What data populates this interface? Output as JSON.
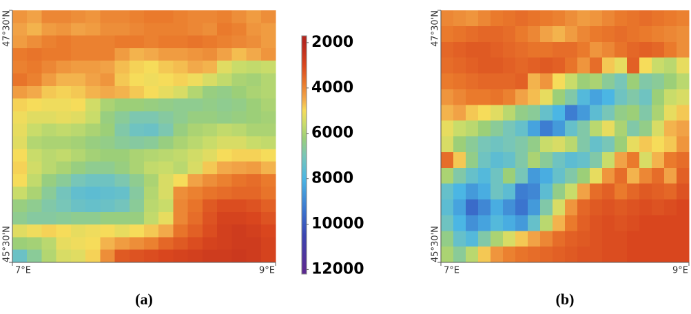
{
  "chart_data": [
    {
      "type": "heatmap",
      "caption": "(a)",
      "xlim": [
        7,
        9
      ],
      "ylim": [
        45.5,
        47.5
      ],
      "xticks": [
        {
          "value": 7,
          "label": "7°E"
        },
        {
          "value": 9,
          "label": "9°E"
        }
      ],
      "yticks": [
        {
          "value": 45.5,
          "label": "45°30'N"
        },
        {
          "value": 47.5,
          "label": "47°30'N"
        }
      ],
      "colorbar": {
        "clim": [
          1700,
          12200
        ],
        "ticks": [
          2000,
          4000,
          6000,
          8000,
          10000,
          12000
        ]
      },
      "colormap": [
        {
          "value": 2000,
          "color": "#b5261e"
        },
        {
          "value": 3000,
          "color": "#d9461e"
        },
        {
          "value": 3800,
          "color": "#ea7a2c"
        },
        {
          "value": 4500,
          "color": "#f2a94a"
        },
        {
          "value": 5000,
          "color": "#f6dc5a"
        },
        {
          "value": 5600,
          "color": "#c9dc6a"
        },
        {
          "value": 6200,
          "color": "#9ccf78"
        },
        {
          "value": 7000,
          "color": "#78c6b8"
        },
        {
          "value": 8000,
          "color": "#4bb6e4"
        },
        {
          "value": 9500,
          "color": "#3a6fcc"
        },
        {
          "value": 10500,
          "color": "#3b44b0"
        },
        {
          "value": 12000,
          "color": "#5b2a91"
        }
      ],
      "z": [
        [
          4200,
          4400,
          4000,
          4000,
          4100,
          4200,
          4000,
          4000,
          3900,
          3800,
          3800,
          3900,
          4000,
          4000,
          3900,
          4100,
          4300,
          4100
        ],
        [
          4400,
          4600,
          4300,
          4200,
          4400,
          4300,
          4100,
          4100,
          4000,
          3900,
          3900,
          3900,
          4000,
          4100,
          3800,
          3900,
          4200,
          4300
        ],
        [
          4300,
          4100,
          3900,
          3800,
          3900,
          3900,
          3900,
          3800,
          3800,
          3900,
          3800,
          3800,
          3700,
          3800,
          3900,
          4000,
          4100,
          4300
        ],
        [
          3800,
          3700,
          3800,
          3800,
          3900,
          3900,
          3900,
          4300,
          4600,
          4500,
          4300,
          4300,
          4200,
          4100,
          4400,
          4700,
          4500,
          4200
        ],
        [
          3900,
          3800,
          4000,
          4200,
          4300,
          4300,
          4400,
          4700,
          4900,
          5000,
          4800,
          4700,
          4500,
          4600,
          5300,
          5600,
          5700,
          5600
        ],
        [
          3700,
          3900,
          4300,
          4600,
          4600,
          4400,
          4200,
          4800,
          5000,
          5100,
          5000,
          4900,
          5100,
          5400,
          5700,
          6000,
          6100,
          5900
        ],
        [
          4300,
          4500,
          4800,
          4900,
          4800,
          4600,
          4500,
          4600,
          4800,
          5000,
          5200,
          5400,
          5900,
          6300,
          6400,
          6200,
          6000,
          5900
        ],
        [
          4900,
          5000,
          5100,
          5100,
          5000,
          5500,
          6000,
          6200,
          6200,
          6300,
          6400,
          6500,
          6500,
          6400,
          6500,
          6400,
          6200,
          6000
        ],
        [
          5100,
          5300,
          5300,
          5200,
          5300,
          5600,
          6300,
          6600,
          6900,
          6900,
          6700,
          6500,
          6300,
          6300,
          6400,
          6300,
          6200,
          6100
        ],
        [
          5200,
          5600,
          5800,
          5700,
          5800,
          6000,
          6200,
          6800,
          7200,
          7300,
          6900,
          6300,
          6000,
          5900,
          5700,
          5800,
          6000,
          6000
        ],
        [
          5300,
          5900,
          6000,
          6000,
          6100,
          6300,
          6400,
          6600,
          6700,
          6600,
          6300,
          6000,
          5800,
          5600,
          5400,
          5400,
          5600,
          5700
        ],
        [
          5000,
          5600,
          5800,
          5700,
          5900,
          6100,
          6200,
          6200,
          6000,
          5900,
          5800,
          5700,
          5500,
          5300,
          5000,
          4900,
          4900,
          5000
        ],
        [
          4900,
          5500,
          5800,
          6000,
          6300,
          6500,
          6500,
          6300,
          6000,
          5700,
          5600,
          5800,
          5400,
          4800,
          4500,
          4400,
          4300,
          4600
        ],
        [
          5000,
          5700,
          6300,
          6600,
          7000,
          7200,
          7200,
          6900,
          6500,
          6000,
          5400,
          5000,
          4400,
          4100,
          3900,
          3700,
          3600,
          3800
        ],
        [
          5600,
          6000,
          6600,
          7100,
          7500,
          7600,
          7500,
          7400,
          6700,
          5900,
          5400,
          4100,
          3900,
          3700,
          3600,
          3500,
          3500,
          3700
        ],
        [
          6300,
          6500,
          6800,
          7000,
          7300,
          7400,
          7300,
          7100,
          6600,
          5800,
          5600,
          4000,
          3700,
          3300,
          3100,
          3100,
          3200,
          3400
        ],
        [
          6500,
          6700,
          6700,
          6600,
          6500,
          6500,
          6300,
          6300,
          6300,
          5700,
          5200,
          4000,
          3600,
          3200,
          2900,
          2900,
          3000,
          3200
        ],
        [
          5300,
          5100,
          4900,
          5000,
          5200,
          5100,
          5000,
          5200,
          5000,
          4800,
          4500,
          3700,
          3400,
          3100,
          2800,
          2700,
          2800,
          3000
        ],
        [
          6200,
          6100,
          5800,
          5200,
          5100,
          5000,
          4600,
          4300,
          4100,
          3900,
          3500,
          3300,
          3100,
          2900,
          2800,
          2700,
          2700,
          2900
        ],
        [
          7300,
          6600,
          5900,
          5400,
          5300,
          4900,
          4100,
          3300,
          3200,
          3100,
          3000,
          2900,
          2800,
          2700,
          2700,
          2600,
          2700,
          2900
        ]
      ]
    },
    {
      "type": "heatmap",
      "caption": "(b)",
      "xlim": [
        7,
        9
      ],
      "ylim": [
        45.5,
        47.5
      ],
      "xticks": [
        {
          "value": 7,
          "label": "7°E"
        },
        {
          "value": 9,
          "label": "9°E"
        }
      ],
      "yticks": [
        {
          "value": 45.5,
          "label": "45°30'N"
        },
        {
          "value": 47.5,
          "label": "47°30'N"
        }
      ],
      "z": [
        [
          4000,
          4100,
          4200,
          4000,
          3800,
          3700,
          3600,
          3700,
          3800,
          3900,
          4100,
          4300,
          4200,
          4000,
          3800,
          3700,
          3600,
          3700,
          3800,
          3900
        ],
        [
          3800,
          3700,
          3600,
          3500,
          3500,
          3600,
          3800,
          4000,
          4400,
          4600,
          4300,
          4000,
          3800,
          3700,
          3600,
          3700,
          3800,
          3900,
          4000,
          4100
        ],
        [
          3500,
          3400,
          3300,
          3300,
          3400,
          3500,
          3600,
          3700,
          3700,
          3600,
          3600,
          3800,
          4200,
          4000,
          3700,
          3500,
          3400,
          3500,
          3800,
          4100
        ],
        [
          3600,
          3500,
          3400,
          3300,
          3300,
          3400,
          3500,
          3400,
          3300,
          3400,
          3700,
          4200,
          3600,
          4800,
          5200,
          3400,
          5000,
          5600,
          5800,
          5200
        ],
        [
          3800,
          3700,
          3600,
          3500,
          3500,
          3500,
          3400,
          4600,
          4200,
          5000,
          5600,
          6200,
          6000,
          6600,
          7000,
          6200,
          6800,
          6600,
          6200,
          5800
        ],
        [
          4200,
          4000,
          3800,
          3800,
          3700,
          3900,
          4400,
          4700,
          5200,
          6200,
          6800,
          7800,
          8400,
          8000,
          7200,
          6800,
          7200,
          6200,
          5600,
          5400
        ],
        [
          4600,
          4400,
          4800,
          5000,
          5300,
          5800,
          6400,
          6600,
          7400,
          8000,
          9200,
          8600,
          7600,
          7000,
          6400,
          6200,
          6800,
          6000,
          5200,
          4800
        ],
        [
          5200,
          5600,
          5800,
          6200,
          6600,
          7000,
          7400,
          8400,
          9200,
          8600,
          7400,
          6800,
          5800,
          5200,
          6000,
          6800,
          6400,
          5400,
          4600,
          4400
        ],
        [
          5400,
          6200,
          6600,
          7000,
          7200,
          7000,
          6800,
          6400,
          5600,
          5400,
          5800,
          6800,
          7400,
          7000,
          6200,
          5200,
          4800,
          5000,
          4800,
          4200
        ],
        [
          3600,
          4800,
          6400,
          7200,
          7600,
          7400,
          6800,
          6000,
          6600,
          7200,
          7600,
          7400,
          6800,
          5600,
          4400,
          3800,
          5400,
          4600,
          3800,
          3600
        ],
        [
          6000,
          6800,
          7400,
          7800,
          7200,
          6200,
          7000,
          8600,
          8200,
          7400,
          6800,
          6200,
          5200,
          4200,
          3600,
          4600,
          4000,
          3600,
          4400,
          3400
        ],
        [
          7400,
          8000,
          8600,
          8200,
          7200,
          7600,
          9200,
          9000,
          7600,
          6400,
          5600,
          4400,
          3600,
          3400,
          3800,
          3500,
          3300,
          3400,
          3500,
          3200
        ],
        [
          7600,
          8400,
          9600,
          9000,
          8200,
          8800,
          9400,
          8600,
          6800,
          5400,
          4200,
          3500,
          3300,
          3200,
          3300,
          3200,
          3100,
          3200,
          3100,
          3000
        ],
        [
          7200,
          8000,
          8800,
          8400,
          7800,
          8200,
          8600,
          7400,
          5800,
          4600,
          3800,
          3400,
          3200,
          3100,
          3200,
          3100,
          3000,
          3000,
          3000,
          3000
        ],
        [
          6400,
          7400,
          7800,
          6800,
          6000,
          5400,
          4800,
          4400,
          4000,
          3600,
          3400,
          3300,
          3200,
          3100,
          3100,
          3000,
          3000,
          3000,
          3000,
          3000
        ],
        [
          6000,
          6600,
          5800,
          4800,
          4200,
          3900,
          3700,
          3600,
          3500,
          3400,
          3300,
          3200,
          3200,
          3100,
          3100,
          3000,
          3000,
          3000,
          3000,
          3000
        ]
      ]
    }
  ]
}
